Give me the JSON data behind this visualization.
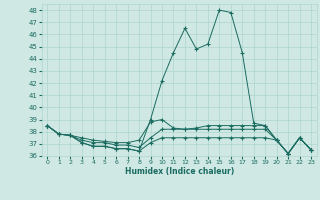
{
  "xlabel": "Humidex (Indice chaleur)",
  "xlim": [
    -0.5,
    23.5
  ],
  "ylim": [
    36,
    48.5
  ],
  "yticks": [
    36,
    37,
    38,
    39,
    40,
    41,
    42,
    43,
    44,
    45,
    46,
    47,
    48
  ],
  "xticks": [
    0,
    1,
    2,
    3,
    4,
    5,
    6,
    7,
    8,
    9,
    10,
    11,
    12,
    13,
    14,
    15,
    16,
    17,
    18,
    19,
    20,
    21,
    22,
    23
  ],
  "bg_color": "#cfe8e4",
  "grid_color": "#afd4ce",
  "line_color": "#1a6b60",
  "series": [
    [
      38.5,
      37.8,
      37.7,
      37.5,
      37.3,
      37.2,
      37.1,
      37.1,
      37.3,
      38.8,
      39.0,
      38.3,
      38.2,
      38.3,
      38.5,
      38.5,
      38.5,
      38.5,
      38.5,
      38.5,
      37.3,
      36.2,
      37.5,
      36.5
    ],
    [
      38.5,
      37.8,
      37.7,
      37.3,
      37.1,
      37.1,
      36.9,
      36.9,
      36.7,
      37.5,
      38.2,
      38.2,
      38.2,
      38.2,
      38.2,
      38.2,
      38.2,
      38.2,
      38.2,
      38.2,
      37.3,
      36.2,
      37.5,
      36.5
    ],
    [
      38.5,
      37.8,
      37.7,
      37.1,
      36.8,
      36.8,
      36.6,
      36.6,
      36.4,
      37.1,
      37.5,
      37.5,
      37.5,
      37.5,
      37.5,
      37.5,
      37.5,
      37.5,
      37.5,
      37.5,
      37.3,
      36.2,
      37.5,
      36.5
    ],
    [
      38.5,
      37.8,
      37.7,
      37.1,
      36.8,
      36.8,
      36.6,
      36.6,
      36.4,
      39.0,
      42.2,
      44.5,
      46.5,
      44.8,
      45.2,
      48.0,
      47.8,
      44.5,
      38.7,
      38.5,
      37.3,
      36.2,
      37.5,
      36.5
    ]
  ]
}
